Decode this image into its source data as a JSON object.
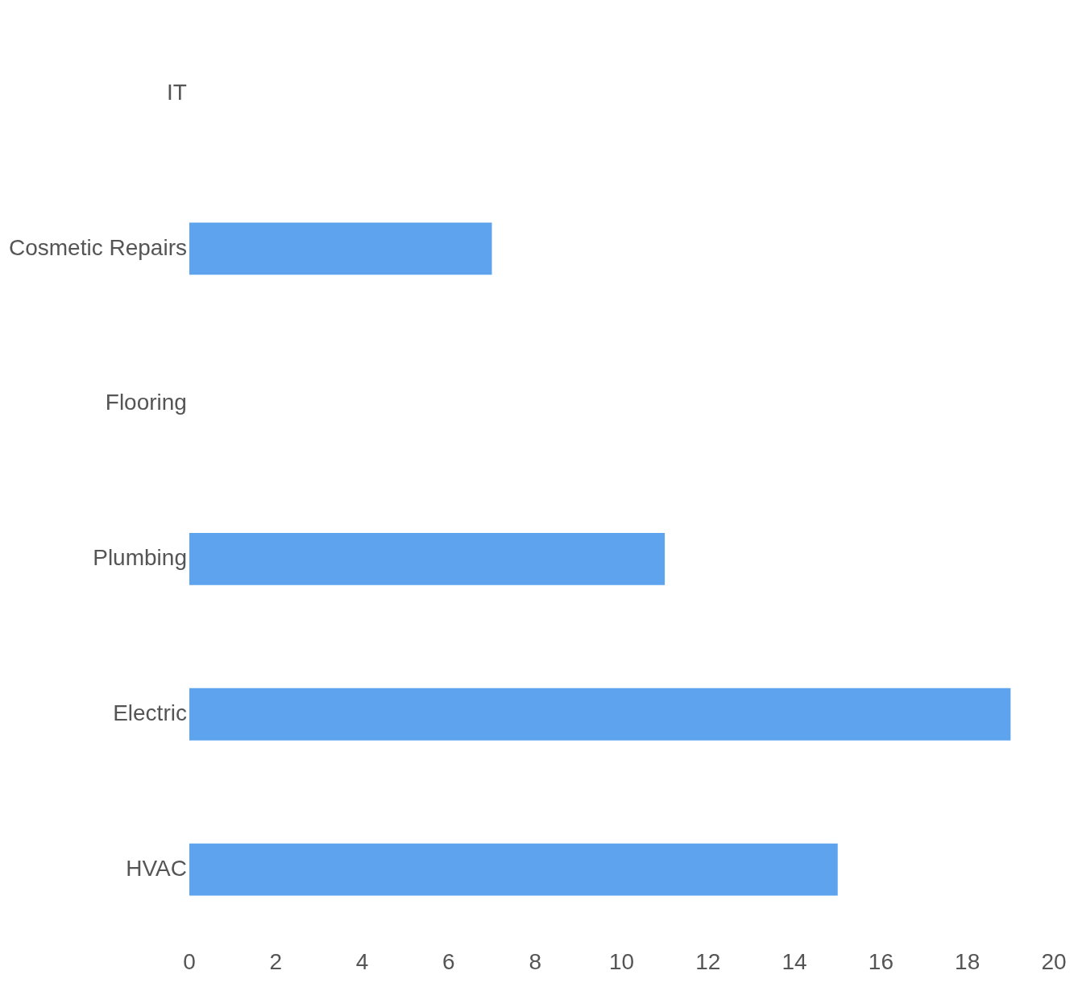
{
  "chart_data": {
    "type": "bar",
    "orientation": "horizontal",
    "categories": [
      "IT",
      "Cosmetic Repairs",
      "Flooring",
      "Plumbing",
      "Electric",
      "HVAC"
    ],
    "values": [
      0,
      7,
      0,
      11,
      19,
      15
    ],
    "color": "#5ea3ee",
    "xlim": [
      0,
      20
    ],
    "xticks": [
      0,
      2,
      4,
      6,
      8,
      10,
      12,
      14,
      16,
      18,
      20
    ],
    "grid": false,
    "legend": false
  }
}
